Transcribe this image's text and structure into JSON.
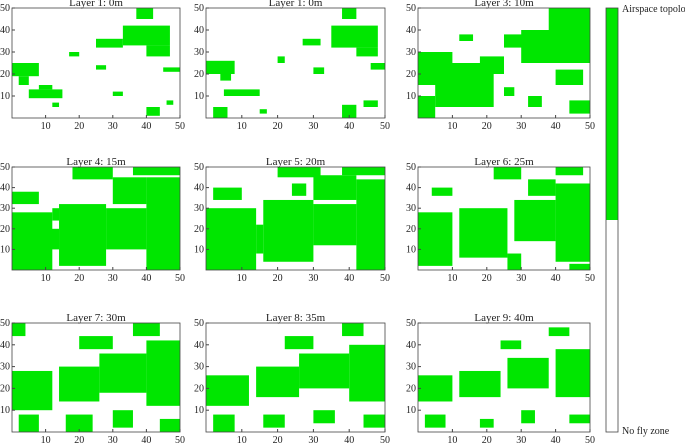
{
  "chart_data": [
    {
      "type": "heatmap",
      "title": "Layer 1: 0m",
      "color": "#00e600",
      "xlim": [
        0,
        50
      ],
      "ylim": [
        0,
        50
      ],
      "xticks": [
        10,
        20,
        30,
        40,
        50
      ],
      "yticks": [
        10,
        20,
        30,
        40,
        50
      ],
      "cells": [
        [
          37,
          42,
          45,
          50
        ],
        [
          33,
          47,
          33,
          42
        ],
        [
          40,
          47,
          28,
          33
        ],
        [
          25,
          33,
          32,
          36
        ],
        [
          0,
          8,
          19,
          25
        ],
        [
          2,
          5,
          15,
          19
        ],
        [
          5,
          15,
          9,
          13
        ],
        [
          8,
          12,
          13,
          15
        ],
        [
          17,
          20,
          28,
          30
        ],
        [
          45,
          50,
          21,
          23
        ],
        [
          30,
          33,
          10,
          12
        ],
        [
          40,
          44,
          1,
          5
        ],
        [
          46,
          48,
          6,
          8
        ],
        [
          25,
          28,
          22,
          24
        ],
        [
          12,
          14,
          5,
          7
        ]
      ]
    },
    {
      "type": "heatmap",
      "title": "Layer 1: 0m",
      "color": "#00e600",
      "xlim": [
        0,
        50
      ],
      "ylim": [
        0,
        50
      ],
      "xticks": [
        10,
        20,
        30,
        40,
        50
      ],
      "yticks": [
        10,
        20,
        30,
        40,
        50
      ],
      "cells": [
        [
          38,
          42,
          45,
          50
        ],
        [
          35,
          48,
          32,
          42
        ],
        [
          42,
          48,
          28,
          32
        ],
        [
          27,
          32,
          33,
          36
        ],
        [
          0,
          8,
          20,
          26
        ],
        [
          4,
          7,
          17,
          20
        ],
        [
          5,
          15,
          10,
          13
        ],
        [
          2,
          6,
          0,
          5
        ],
        [
          38,
          42,
          0,
          6
        ],
        [
          44,
          48,
          5,
          8
        ],
        [
          20,
          22,
          25,
          28
        ],
        [
          30,
          33,
          20,
          23
        ],
        [
          15,
          17,
          2,
          4
        ],
        [
          46,
          50,
          22,
          25
        ]
      ]
    },
    {
      "type": "heatmap",
      "title": "Layer 3: 10m",
      "color": "#00e600",
      "xlim": [
        0,
        50
      ],
      "ylim": [
        0,
        50
      ],
      "xticks": [
        10,
        20,
        30,
        40,
        50
      ],
      "yticks": [
        10,
        20,
        30,
        40,
        50
      ],
      "cells": [
        [
          0,
          10,
          15,
          30
        ],
        [
          5,
          22,
          5,
          25
        ],
        [
          0,
          5,
          0,
          10
        ],
        [
          18,
          25,
          20,
          28
        ],
        [
          30,
          50,
          25,
          40
        ],
        [
          38,
          50,
          40,
          50
        ],
        [
          25,
          35,
          32,
          38
        ],
        [
          40,
          48,
          15,
          22
        ],
        [
          32,
          36,
          5,
          10
        ],
        [
          44,
          50,
          2,
          8
        ],
        [
          25,
          28,
          10,
          14
        ],
        [
          12,
          16,
          35,
          38
        ]
      ]
    },
    {
      "type": "heatmap",
      "title": "Layer 4: 15m",
      "color": "#00e600",
      "xlim": [
        0,
        50
      ],
      "ylim": [
        0,
        50
      ],
      "xticks": [
        10,
        20,
        30,
        40,
        50
      ],
      "yticks": [
        10,
        20,
        30,
        40,
        50
      ],
      "cells": [
        [
          0,
          12,
          0,
          28
        ],
        [
          14,
          28,
          2,
          32
        ],
        [
          28,
          40,
          10,
          30
        ],
        [
          40,
          50,
          0,
          45
        ],
        [
          30,
          40,
          32,
          45
        ],
        [
          18,
          30,
          44,
          50
        ],
        [
          0,
          8,
          32,
          38
        ],
        [
          36,
          50,
          46,
          50
        ],
        [
          8,
          14,
          10,
          20
        ],
        [
          12,
          14,
          24,
          30
        ]
      ]
    },
    {
      "type": "heatmap",
      "title": "Layer 5: 20m",
      "color": "#00e600",
      "xlim": [
        0,
        50
      ],
      "ylim": [
        0,
        50
      ],
      "xticks": [
        10,
        20,
        30,
        40,
        50
      ],
      "yticks": [
        10,
        20,
        30,
        40,
        50
      ],
      "cells": [
        [
          0,
          14,
          0,
          30
        ],
        [
          16,
          30,
          4,
          34
        ],
        [
          30,
          42,
          12,
          32
        ],
        [
          42,
          50,
          0,
          44
        ],
        [
          30,
          42,
          34,
          46
        ],
        [
          20,
          32,
          45,
          50
        ],
        [
          2,
          10,
          34,
          40
        ],
        [
          38,
          50,
          46,
          50
        ],
        [
          14,
          16,
          8,
          22
        ],
        [
          24,
          28,
          36,
          42
        ]
      ]
    },
    {
      "type": "heatmap",
      "title": "Layer 6: 25m",
      "color": "#00e600",
      "xlim": [
        0,
        50
      ],
      "ylim": [
        0,
        50
      ],
      "xticks": [
        10,
        20,
        30,
        40,
        50
      ],
      "yticks": [
        10,
        20,
        30,
        40,
        50
      ],
      "cells": [
        [
          0,
          10,
          2,
          28
        ],
        [
          12,
          26,
          6,
          30
        ],
        [
          28,
          40,
          14,
          34
        ],
        [
          40,
          50,
          4,
          42
        ],
        [
          32,
          40,
          36,
          44
        ],
        [
          22,
          30,
          44,
          50
        ],
        [
          4,
          10,
          36,
          40
        ],
        [
          40,
          48,
          46,
          50
        ],
        [
          26,
          30,
          0,
          8
        ],
        [
          44,
          50,
          0,
          3
        ]
      ]
    },
    {
      "type": "heatmap",
      "title": "Layer 7: 30m",
      "color": "#00e600",
      "xlim": [
        0,
        50
      ],
      "ylim": [
        0,
        50
      ],
      "xticks": [
        10,
        20,
        30,
        40,
        50
      ],
      "yticks": [
        10,
        20,
        30,
        40,
        50
      ],
      "cells": [
        [
          0,
          12,
          10,
          28
        ],
        [
          14,
          26,
          14,
          30
        ],
        [
          26,
          40,
          18,
          36
        ],
        [
          40,
          50,
          12,
          42
        ],
        [
          2,
          8,
          0,
          8
        ],
        [
          16,
          24,
          0,
          8
        ],
        [
          30,
          36,
          2,
          10
        ],
        [
          20,
          30,
          38,
          44
        ],
        [
          36,
          44,
          44,
          50
        ],
        [
          0,
          4,
          44,
          50
        ],
        [
          44,
          50,
          0,
          6
        ]
      ]
    },
    {
      "type": "heatmap",
      "title": "Layer 8: 35m",
      "color": "#00e600",
      "xlim": [
        0,
        50
      ],
      "ylim": [
        0,
        50
      ],
      "xticks": [
        10,
        20,
        30,
        40,
        50
      ],
      "yticks": [
        10,
        20,
        30,
        40,
        50
      ],
      "cells": [
        [
          0,
          12,
          12,
          26
        ],
        [
          14,
          26,
          16,
          30
        ],
        [
          26,
          40,
          20,
          36
        ],
        [
          40,
          50,
          14,
          40
        ],
        [
          2,
          8,
          0,
          8
        ],
        [
          16,
          22,
          2,
          8
        ],
        [
          30,
          36,
          4,
          10
        ],
        [
          22,
          30,
          38,
          44
        ],
        [
          38,
          44,
          44,
          50
        ],
        [
          44,
          50,
          2,
          8
        ]
      ]
    },
    {
      "type": "heatmap",
      "title": "Layer 9: 40m",
      "color": "#00e600",
      "xlim": [
        0,
        50
      ],
      "ylim": [
        0,
        50
      ],
      "xticks": [
        10,
        20,
        30,
        40,
        50
      ],
      "yticks": [
        10,
        20,
        30,
        40,
        50
      ],
      "cells": [
        [
          0,
          10,
          14,
          26
        ],
        [
          12,
          24,
          16,
          28
        ],
        [
          26,
          38,
          20,
          34
        ],
        [
          40,
          50,
          16,
          38
        ],
        [
          2,
          8,
          2,
          8
        ],
        [
          18,
          22,
          2,
          6
        ],
        [
          30,
          34,
          4,
          10
        ],
        [
          24,
          30,
          38,
          42
        ],
        [
          38,
          44,
          44,
          48
        ],
        [
          44,
          50,
          4,
          8
        ]
      ]
    },
    {
      "type": "colorbar",
      "top_label": "Airspace topology",
      "bottom_label": "No fly zone",
      "colors": [
        "#00e600",
        "#ffffff"
      ]
    }
  ]
}
